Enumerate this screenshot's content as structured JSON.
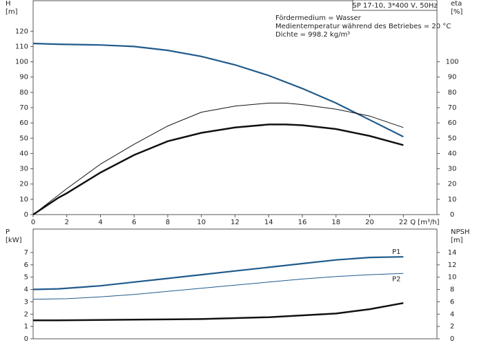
{
  "chart_data": [
    {
      "type": "line",
      "title": "SP 17-10, 3*400 V, 50Hz",
      "annotations": [
        "Fördermedium = Wasser",
        "Medientemperatur während des Betriebes = 20 °C",
        "Dichte = 998.2 kg/m³"
      ],
      "ylabel": [
        "H",
        "[m]"
      ],
      "y2label": [
        "eta",
        "[%]"
      ],
      "xlabel": "Q [m³/h]",
      "xlim": [
        0,
        24
      ],
      "xticks": [
        0,
        2,
        4,
        6,
        8,
        10,
        12,
        14,
        16,
        18,
        20,
        22
      ],
      "ylim": [
        0,
        140
      ],
      "yticks": [
        0,
        10,
        20,
        30,
        40,
        50,
        60,
        70,
        80,
        90,
        100,
        110,
        120
      ],
      "y2lim": [
        0,
        140
      ],
      "y2ticks": [
        0,
        10,
        20,
        30,
        40,
        50,
        60,
        70,
        80,
        90,
        100
      ],
      "grid": false,
      "series": [
        {
          "color": "#1f5a8c",
          "width": 2.2,
          "x": [
            0,
            1.5,
            4,
            6,
            8,
            10,
            12,
            14,
            16,
            18,
            20,
            22
          ],
          "values": [
            112,
            111.5,
            111,
            110,
            107.5,
            103.5,
            98,
            91,
            82.5,
            73,
            62,
            51
          ]
        },
        {
          "color": "#111111",
          "width": 1,
          "axis": "y2",
          "x": [
            0,
            2,
            4,
            6,
            8,
            10,
            12,
            14,
            15,
            16,
            18,
            20,
            22
          ],
          "values": [
            0,
            17,
            33,
            46,
            58,
            67,
            71,
            73,
            73,
            72,
            69,
            64.5,
            57
          ]
        },
        {
          "color": "#111111",
          "width": 2.5,
          "axis": "y2",
          "x": [
            0,
            1.5,
            2,
            4,
            6,
            8,
            10,
            12,
            14,
            15,
            16,
            18,
            20,
            22
          ],
          "values": [
            0,
            11,
            14,
            27.5,
            39,
            48,
            53.5,
            57,
            59,
            59,
            58.5,
            56,
            51.5,
            45.5
          ]
        }
      ]
    },
    {
      "type": "line",
      "ylabel": [
        "P",
        "[kW]"
      ],
      "y2label": [
        "NPSH",
        "[m]"
      ],
      "xlim": [
        0,
        24
      ],
      "ylim": [
        0,
        8.9
      ],
      "yticks": [
        0,
        1,
        2,
        3,
        4,
        5,
        6,
        7
      ],
      "y2lim": [
        0,
        17.8
      ],
      "y2ticks": [
        0,
        2,
        4,
        6,
        8,
        10,
        12,
        14
      ],
      "grid": false,
      "series": [
        {
          "name": "P1",
          "color": "#1f5a8c",
          "width": 2.2,
          "x": [
            0,
            1.5,
            4,
            6,
            8,
            10,
            12,
            14,
            16,
            18,
            20,
            22
          ],
          "values": [
            4,
            4.05,
            4.3,
            4.6,
            4.9,
            5.2,
            5.5,
            5.8,
            6.1,
            6.4,
            6.6,
            6.65
          ]
        },
        {
          "name": "P2",
          "color": "#1f5a8c",
          "width": 1,
          "x": [
            0,
            2,
            4,
            6,
            8,
            10,
            12,
            14,
            16,
            18,
            20,
            22
          ],
          "values": [
            3.2,
            3.25,
            3.4,
            3.6,
            3.85,
            4.1,
            4.35,
            4.6,
            4.85,
            5.05,
            5.2,
            5.3
          ]
        },
        {
          "color": "#111111",
          "width": 2.5,
          "axis": "y2",
          "x": [
            0,
            1.5,
            6,
            10,
            14,
            18,
            20,
            22
          ],
          "values": [
            3,
            3,
            3.1,
            3.2,
            3.5,
            4.1,
            4.8,
            5.8
          ]
        }
      ]
    }
  ]
}
